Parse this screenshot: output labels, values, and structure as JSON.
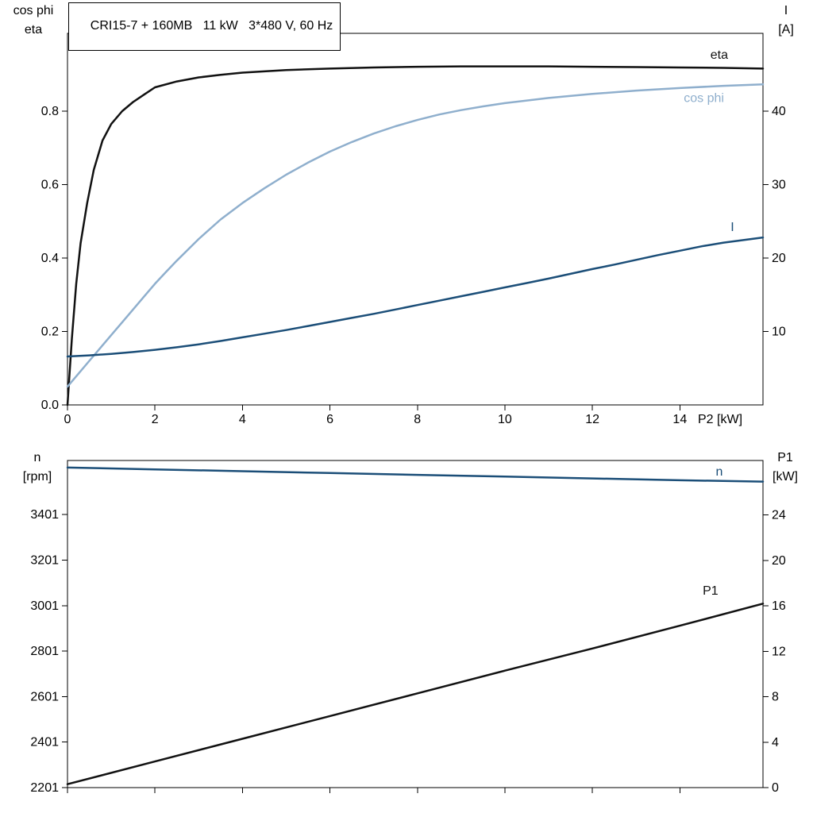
{
  "title": "CRI15-7 + 160MB   11 kW   3*480 V, 60 Hz",
  "colors": {
    "black": "#111111",
    "dark_blue": "#1b4e78",
    "light_blue": "#8fafcd",
    "axis": "#000000"
  },
  "chart_data": [
    {
      "type": "line",
      "title": "CRI15-7 + 160MB   11 kW   3*480 V, 60 Hz",
      "xlabel": "P2 [kW]",
      "xlim": [
        0,
        15.9
      ],
      "grid": false,
      "x_tick_values": [
        0,
        2,
        4,
        6,
        8,
        10,
        12,
        14
      ],
      "x_tick_labels": [
        "0",
        "2",
        "4",
        "6",
        "8",
        "10",
        "12",
        "14"
      ],
      "left_axis": {
        "label": [
          "cos phi",
          "eta"
        ],
        "lim": [
          0,
          1.012
        ],
        "tick_values": [
          0,
          0.2,
          0.4,
          0.6,
          0.8
        ],
        "tick_labels": [
          "0.0",
          "0.2",
          "0.4",
          "0.6",
          "0.8"
        ]
      },
      "right_axis": {
        "label": [
          "I",
          "[A]"
        ],
        "lim": [
          0,
          50.6
        ],
        "tick_values": [
          10,
          20,
          30,
          40
        ],
        "tick_labels": [
          "10",
          "20",
          "30",
          "40"
        ]
      },
      "series": [
        {
          "name": "eta",
          "axis": "left",
          "color": "#111111",
          "label_pos": {
            "x": 14.9,
            "y": 0.954
          },
          "x": [
            0,
            0.1,
            0.2,
            0.3,
            0.45,
            0.6,
            0.8,
            1,
            1.25,
            1.5,
            1.75,
            2,
            2.5,
            3,
            3.5,
            4,
            5,
            6,
            7,
            8,
            9,
            10,
            11,
            12,
            13,
            14,
            15,
            15.9
          ],
          "y": [
            0,
            0.18,
            0.33,
            0.44,
            0.55,
            0.64,
            0.72,
            0.765,
            0.8,
            0.825,
            0.845,
            0.865,
            0.881,
            0.892,
            0.899,
            0.905,
            0.912,
            0.916,
            0.919,
            0.921,
            0.922,
            0.922,
            0.922,
            0.921,
            0.92,
            0.919,
            0.918,
            0.916
          ]
        },
        {
          "name": "cos phi",
          "axis": "left",
          "color": "#8fafcd",
          "label_pos": {
            "x": 14.55,
            "y": 0.836
          },
          "x": [
            0,
            0.25,
            0.5,
            0.75,
            1,
            1.25,
            1.5,
            1.75,
            2,
            2.25,
            2.5,
            3,
            3.5,
            4,
            4.5,
            5,
            5.5,
            6,
            6.5,
            7,
            7.5,
            8,
            8.5,
            9,
            9.5,
            10,
            11,
            12,
            13,
            14,
            15,
            15.9
          ],
          "y": [
            0.05,
            0.085,
            0.12,
            0.155,
            0.19,
            0.225,
            0.26,
            0.295,
            0.33,
            0.362,
            0.393,
            0.452,
            0.505,
            0.55,
            0.59,
            0.627,
            0.66,
            0.69,
            0.716,
            0.739,
            0.759,
            0.776,
            0.791,
            0.803,
            0.813,
            0.822,
            0.836,
            0.847,
            0.856,
            0.863,
            0.869,
            0.873
          ]
        },
        {
          "name": "I",
          "axis": "right",
          "color": "#1b4e78",
          "label_pos": {
            "x": 15.2,
            "y": 24.2
          },
          "x": [
            0,
            0.5,
            1,
            1.5,
            2,
            2.5,
            3,
            3.5,
            4,
            4.5,
            5,
            5.5,
            6,
            6.5,
            7,
            7.5,
            8,
            8.5,
            9,
            9.5,
            10,
            10.5,
            11,
            11.5,
            12,
            12.5,
            13,
            13.5,
            14,
            14.5,
            15,
            15.9
          ],
          "y": [
            6.6,
            6.75,
            6.95,
            7.2,
            7.5,
            7.85,
            8.25,
            8.7,
            9.2,
            9.7,
            10.2,
            10.75,
            11.3,
            11.85,
            12.4,
            13.0,
            13.6,
            14.2,
            14.8,
            15.4,
            16.0,
            16.6,
            17.2,
            17.85,
            18.5,
            19.1,
            19.75,
            20.4,
            21.0,
            21.6,
            22.1,
            22.8
          ]
        }
      ]
    },
    {
      "type": "line",
      "title": "",
      "xlabel": "",
      "xlim": [
        0,
        15.9
      ],
      "grid": false,
      "x_tick_values": [
        0,
        2,
        4,
        6,
        8,
        10,
        12,
        14
      ],
      "x_tick_labels": [],
      "left_axis": {
        "label": [
          "n",
          "[rpm]"
        ],
        "lim": [
          2201,
          3639
        ],
        "tick_values": [
          2201,
          2401,
          2601,
          2801,
          3001,
          3201,
          3401
        ],
        "tick_labels": [
          "2201",
          "2401",
          "2601",
          "2801",
          "3001",
          "3201",
          "3401"
        ]
      },
      "right_axis": {
        "label": [
          "P1",
          "[kW]"
        ],
        "lim": [
          0,
          28.8
        ],
        "tick_values": [
          0,
          4,
          8,
          12,
          16,
          20,
          24
        ],
        "tick_labels": [
          "0",
          "4",
          "8",
          "12",
          "16",
          "20",
          "24"
        ]
      },
      "series": [
        {
          "name": "n",
          "axis": "left",
          "color": "#1b4e78",
          "label_pos": {
            "x": 14.9,
            "y": 3591
          },
          "x": [
            0,
            2,
            4,
            6,
            8,
            10,
            12,
            14,
            15.9
          ],
          "y": [
            3608,
            3600,
            3592,
            3584,
            3576,
            3568,
            3560,
            3552,
            3546
          ]
        },
        {
          "name": "P1",
          "axis": "right",
          "color": "#111111",
          "label_pos": {
            "x": 14.7,
            "y": 17.35
          },
          "x": [
            0,
            2,
            4,
            6,
            8,
            10,
            12,
            14,
            15.9
          ],
          "y": [
            0.3,
            2.3,
            4.3,
            6.3,
            8.3,
            10.3,
            12.25,
            14.25,
            16.2
          ]
        }
      ]
    }
  ]
}
